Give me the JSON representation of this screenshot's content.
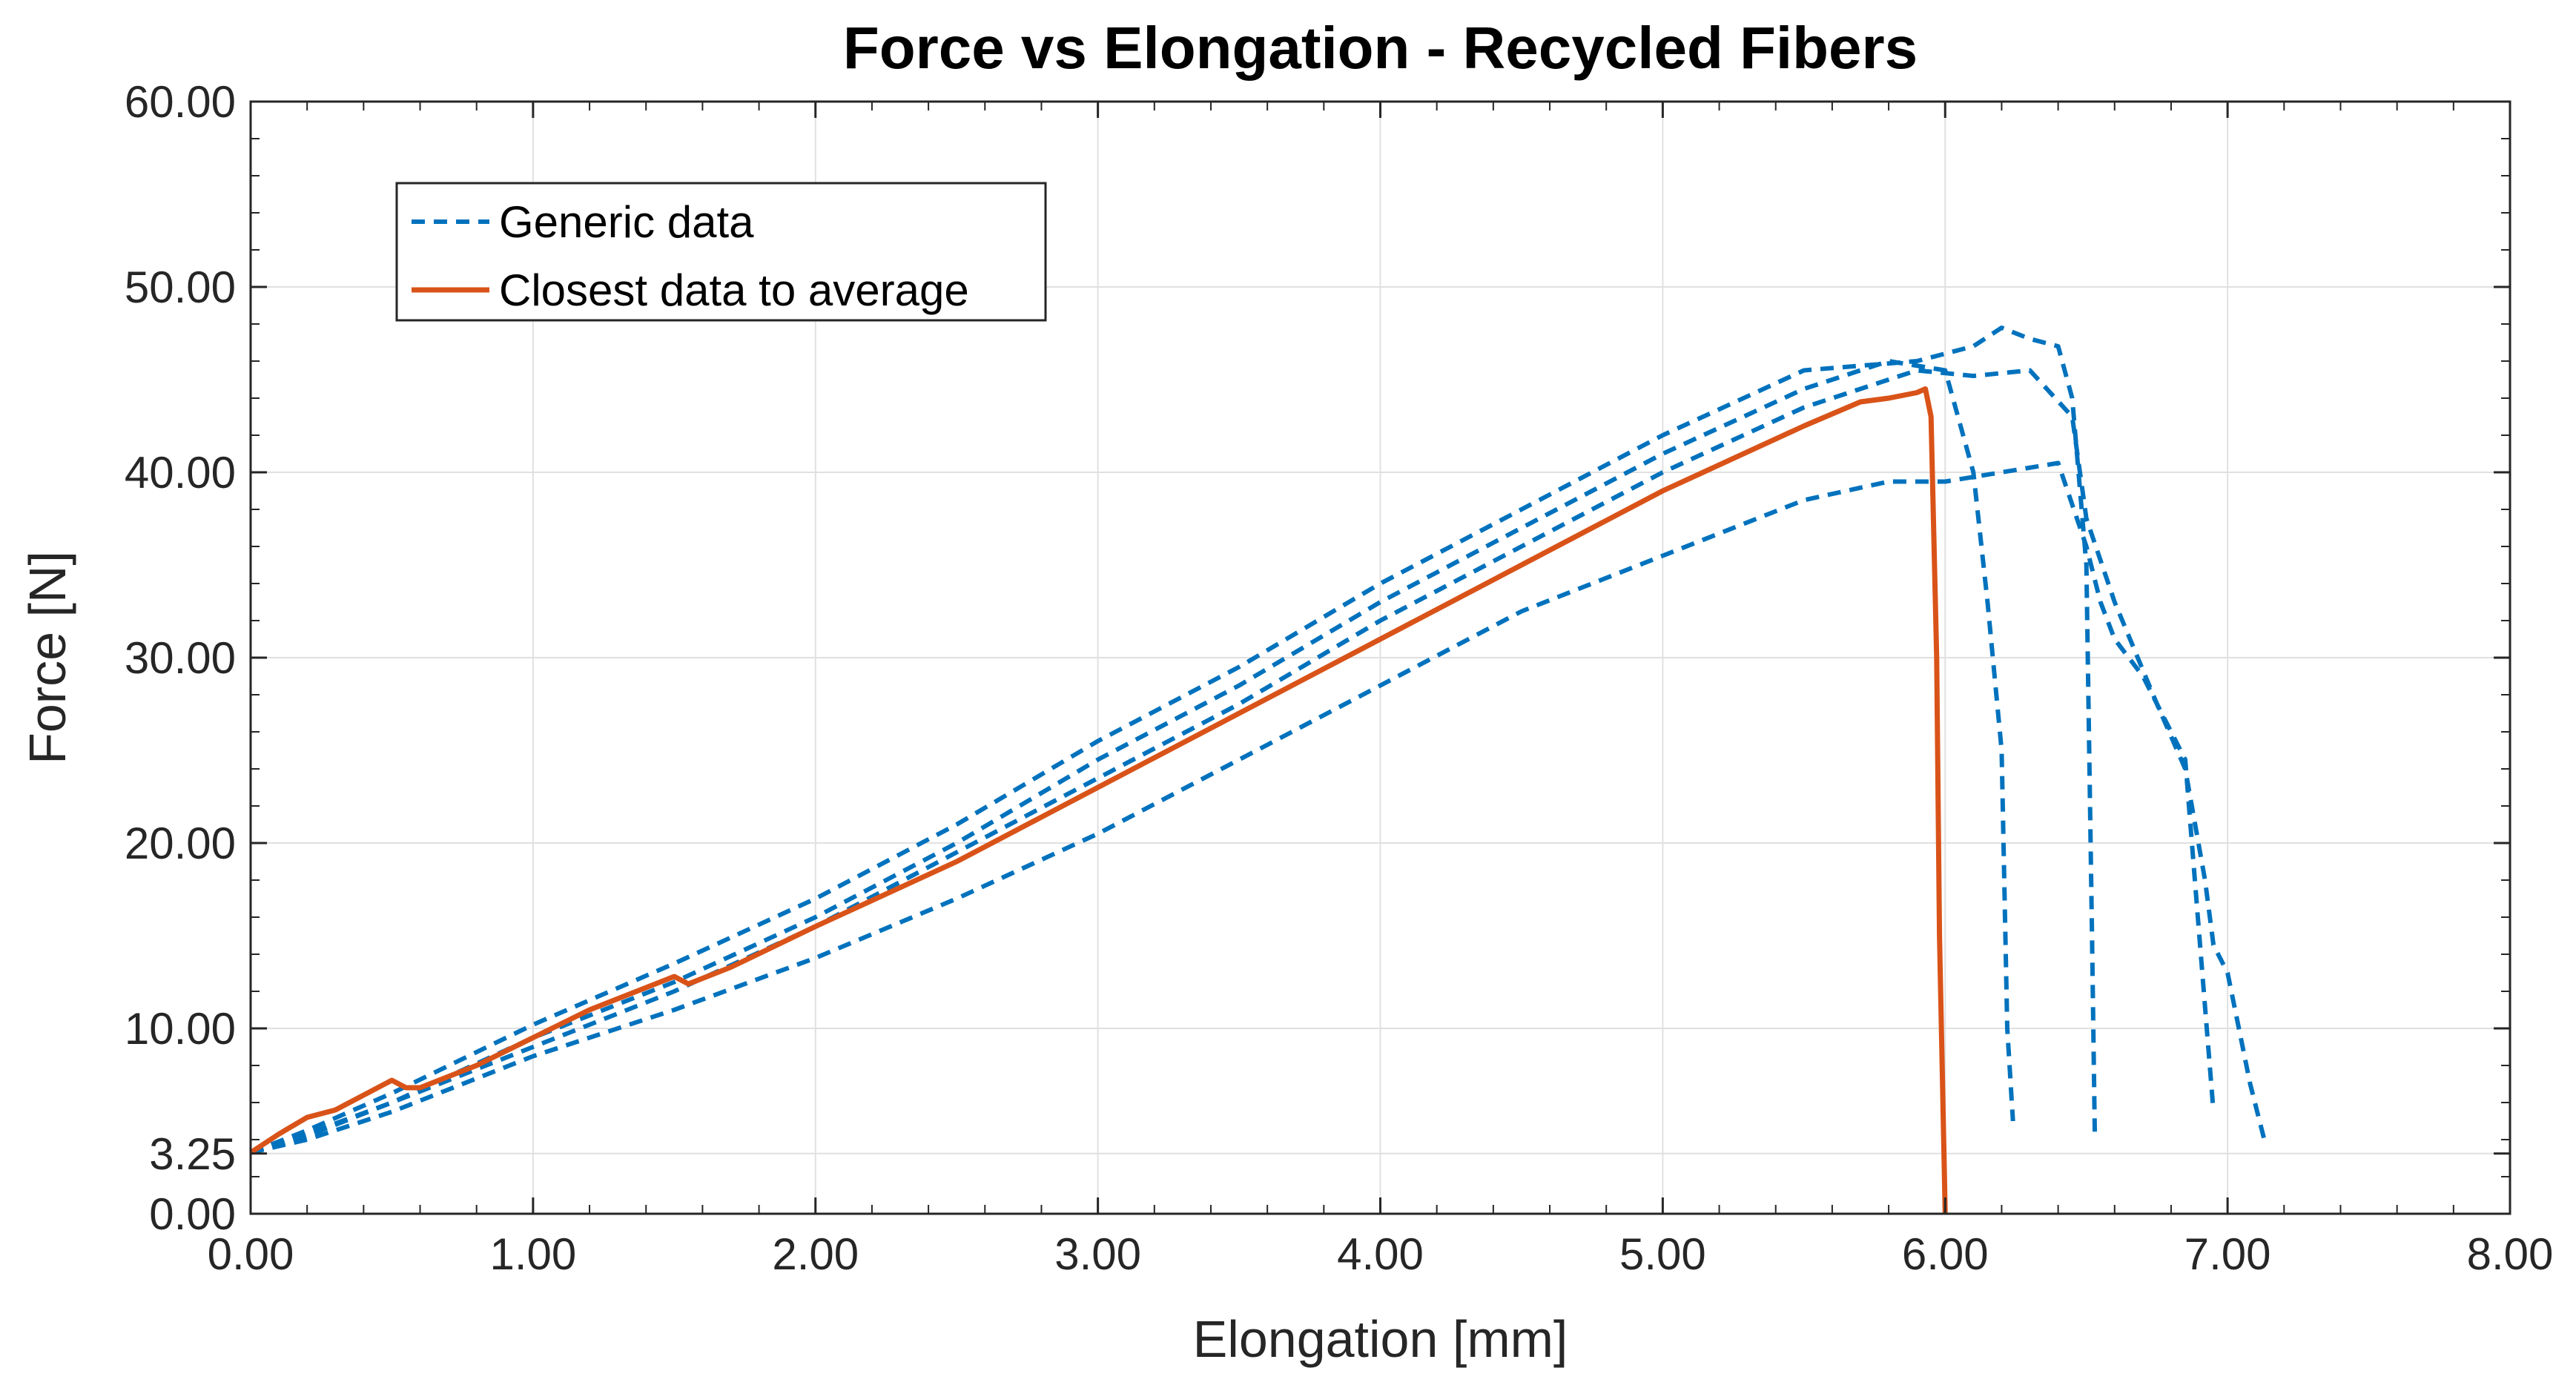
{
  "chart_data": {
    "type": "line",
    "title": "Force vs Elongation - Recycled Fibers",
    "xlabel": "Elongation [mm]",
    "ylabel": "Force [N]",
    "xlim": [
      0,
      8
    ],
    "ylim": [
      0,
      60
    ],
    "xticks": [
      0,
      1,
      2,
      3,
      4,
      5,
      6,
      7,
      8
    ],
    "xtick_labels": [
      "0.00",
      "1.00",
      "2.00",
      "3.00",
      "4.00",
      "5.00",
      "6.00",
      "7.00",
      "8.00"
    ],
    "yticks": [
      0,
      3.25,
      10,
      20,
      30,
      40,
      50,
      60
    ],
    "ytick_labels": [
      "0.00",
      "3.25",
      "10.00",
      "20.00",
      "30.00",
      "40.00",
      "50.00",
      "60.00"
    ],
    "grid": true,
    "legend": {
      "location": "top-left",
      "entries": [
        {
          "label": "Generic data",
          "style": "dashed",
          "color": "#0072BD"
        },
        {
          "label": "Closest data to average",
          "style": "solid",
          "color": "#D95319"
        }
      ]
    },
    "series": [
      {
        "name": "Generic data 1",
        "legend_group": "Generic data",
        "style": "dashed",
        "color": "#0072BD",
        "x": [
          0,
          0.2,
          0.5,
          1.0,
          1.5,
          2.0,
          2.5,
          3.0,
          3.5,
          4.0,
          4.5,
          5.0,
          5.5,
          5.9,
          6.1,
          6.2,
          6.3,
          6.4,
          6.45,
          6.5,
          6.52,
          6.53
        ],
        "y": [
          3.3,
          4.5,
          6.5,
          10.2,
          13.5,
          17.0,
          21.0,
          25.5,
          29.5,
          34.0,
          38.0,
          42.0,
          45.5,
          46.0,
          46.8,
          47.8,
          47.2,
          46.8,
          44.0,
          35.0,
          15.0,
          4.2
        ]
      },
      {
        "name": "Generic data 2",
        "legend_group": "Generic data",
        "style": "dashed",
        "color": "#0072BD",
        "x": [
          0,
          0.2,
          0.5,
          1.0,
          1.5,
          2.0,
          2.5,
          3.0,
          3.5,
          4.0,
          4.5,
          5.0,
          5.5,
          5.8,
          6.0,
          6.1,
          6.15,
          6.2,
          6.22,
          6.24
        ],
        "y": [
          3.3,
          4.3,
          6.0,
          9.5,
          12.5,
          16.0,
          20.0,
          24.5,
          28.5,
          33.0,
          37.0,
          41.0,
          44.5,
          46.0,
          45.5,
          40.0,
          33.0,
          25.0,
          10.0,
          5.0
        ]
      },
      {
        "name": "Generic data 3",
        "legend_group": "Generic data",
        "style": "dashed",
        "color": "#0072BD",
        "x": [
          0,
          0.2,
          0.5,
          1.0,
          1.5,
          2.0,
          2.5,
          3.0,
          3.5,
          4.0,
          4.5,
          5.0,
          5.5,
          5.9,
          6.1,
          6.3,
          6.45,
          6.5,
          6.6,
          6.75,
          6.85,
          6.92,
          6.95,
          7.0,
          7.08,
          7.13
        ],
        "y": [
          3.3,
          4.2,
          6.0,
          9.0,
          12.0,
          15.5,
          19.5,
          23.5,
          27.5,
          32.0,
          36.0,
          40.0,
          43.5,
          45.5,
          45.2,
          45.5,
          43.0,
          37.5,
          33.0,
          27.5,
          24.0,
          18.0,
          14.5,
          13.0,
          7.0,
          4.0
        ]
      },
      {
        "name": "Generic data 4",
        "legend_group": "Generic data",
        "style": "dashed",
        "color": "#0072BD",
        "x": [
          0,
          0.2,
          0.5,
          1.0,
          1.5,
          2.0,
          2.5,
          3.0,
          3.5,
          4.0,
          4.5,
          5.0,
          5.5,
          5.8,
          6.0,
          6.2,
          6.4,
          6.5,
          6.55,
          6.6,
          6.7,
          6.85,
          6.9,
          6.95
        ],
        "y": [
          3.3,
          4.0,
          5.5,
          8.5,
          11.0,
          13.8,
          17.0,
          20.5,
          24.5,
          28.5,
          32.5,
          35.5,
          38.5,
          39.5,
          39.5,
          40.0,
          40.5,
          36.0,
          33.0,
          31.0,
          29.0,
          24.5,
          15.0,
          5.5
        ]
      },
      {
        "name": "Closest data to average",
        "legend_group": "Closest data to average",
        "style": "solid",
        "color": "#D95319",
        "x": [
          0,
          0.1,
          0.2,
          0.3,
          0.5,
          0.55,
          0.6,
          0.8,
          1.0,
          1.2,
          1.4,
          1.5,
          1.55,
          1.7,
          2.0,
          2.5,
          3.0,
          3.5,
          4.0,
          4.5,
          5.0,
          5.5,
          5.7,
          5.8,
          5.9,
          5.93,
          5.95,
          5.97,
          5.98,
          6.0
        ],
        "y": [
          3.3,
          4.3,
          5.2,
          5.6,
          7.2,
          6.8,
          6.8,
          8.0,
          9.5,
          11.0,
          12.2,
          12.8,
          12.4,
          13.3,
          15.5,
          19.0,
          23.0,
          27.0,
          31.0,
          35.0,
          39.0,
          42.5,
          43.8,
          44.0,
          44.3,
          44.5,
          43.0,
          30.0,
          15.0,
          0.0
        ]
      }
    ]
  }
}
